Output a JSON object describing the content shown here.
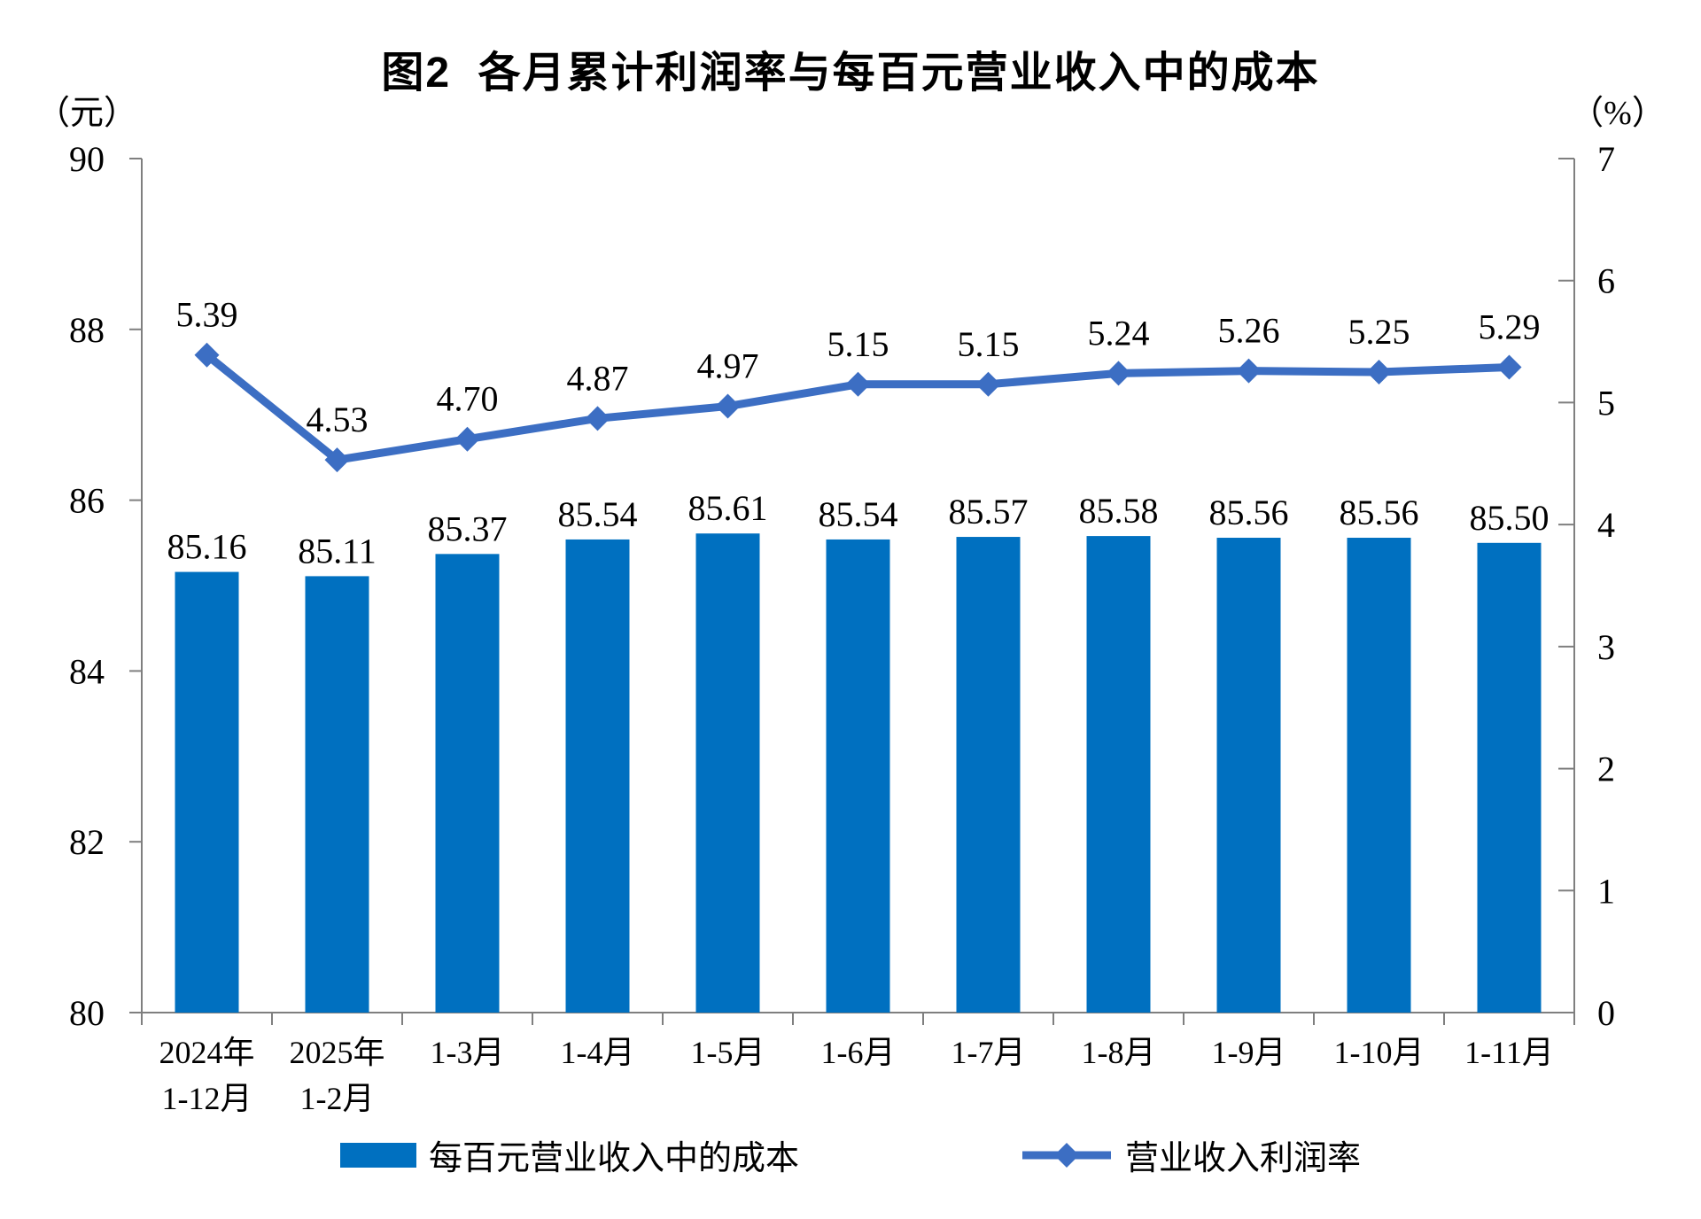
{
  "chart_data": {
    "type": "bar",
    "combo": "bar+line",
    "title": "图2  各月累计利润率与每百元营业收入中的成本",
    "categories": [
      "2024年\n1-12月",
      "2025年\n1-2月",
      "1-3月",
      "1-4月",
      "1-5月",
      "1-6月",
      "1-7月",
      "1-8月",
      "1-9月",
      "1-10月",
      "1-11月"
    ],
    "series": [
      {
        "name": "每百元营业收入中的成本",
        "type": "bar",
        "axis": "left",
        "color": "#0070C0",
        "values": [
          85.16,
          85.11,
          85.37,
          85.54,
          85.61,
          85.54,
          85.57,
          85.58,
          85.56,
          85.56,
          85.5
        ]
      },
      {
        "name": "营业收入利润率",
        "type": "line",
        "axis": "right",
        "color": "#3C6EC3",
        "marker": "diamond",
        "values": [
          5.39,
          4.53,
          4.7,
          4.87,
          4.97,
          5.15,
          5.15,
          5.24,
          5.26,
          5.25,
          5.29
        ]
      }
    ],
    "left_axis": {
      "unit": "（元）",
      "min": 80,
      "max": 90,
      "step": 2,
      "ticks": [
        80,
        82,
        84,
        86,
        88,
        90
      ]
    },
    "right_axis": {
      "unit": "（%）",
      "min": 0,
      "max": 7,
      "step": 1,
      "ticks": [
        0,
        1,
        2,
        3,
        4,
        5,
        6,
        7
      ]
    },
    "legend_position": "bottom",
    "grid": false,
    "axis_color": "#7F7F7F",
    "background": "#FFFFFF"
  }
}
